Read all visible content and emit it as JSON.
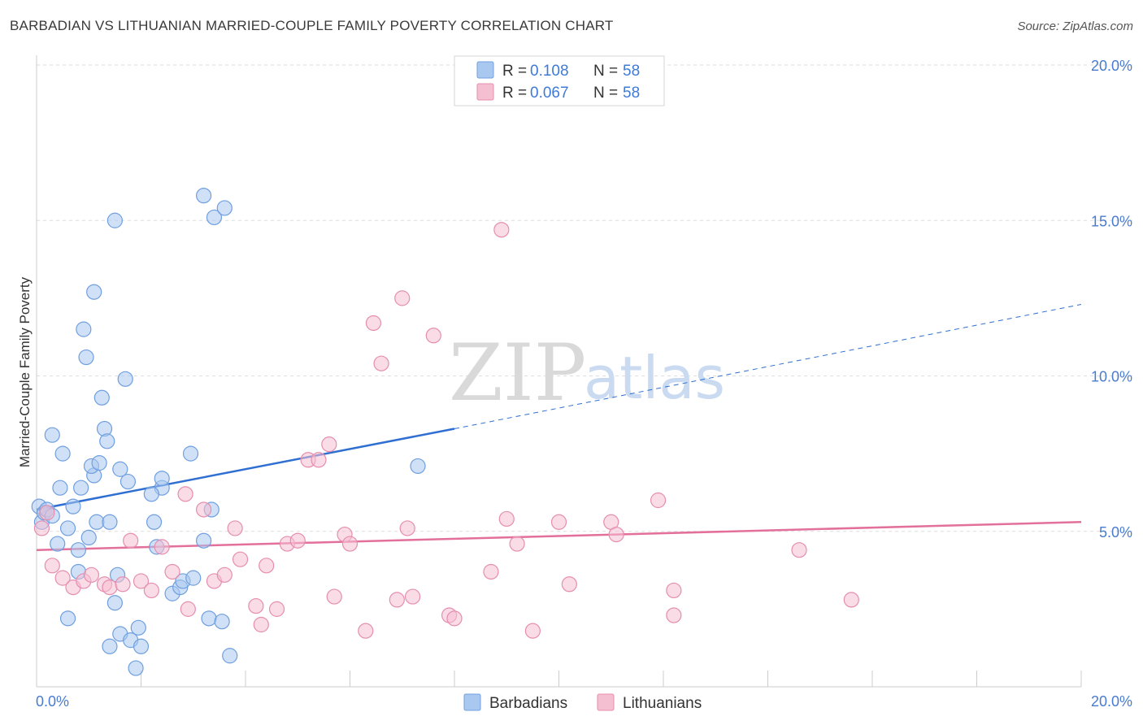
{
  "title": "BARBADIAN VS LITHUANIAN MARRIED-COUPLE FAMILY POVERTY CORRELATION CHART",
  "source": "Source: ZipAtlas.com",
  "watermark": {
    "part1": "ZIP",
    "part2": "atlas"
  },
  "colors": {
    "blue_fill": "#a9c8f0",
    "blue_stroke": "#6f9fe0",
    "blue_line": "#2f6fd1",
    "pink_fill": "#f5bfd2",
    "pink_stroke": "#e58eaf",
    "pink_line": "#e2709a",
    "tick_text": "#4a7bd0",
    "grid": "#dddddd"
  },
  "legend": {
    "rows": [
      {
        "r_label": "R =",
        "r_value": "0.108",
        "n_label": "N =",
        "n_value": "58"
      },
      {
        "r_label": "R =",
        "r_value": "0.067",
        "n_label": "N =",
        "n_value": "58"
      }
    ]
  },
  "bottom_legend": [
    "Barbadians",
    "Lithuanians"
  ],
  "chart_data": {
    "type": "scatter",
    "title": "BARBADIAN VS LITHUANIAN MARRIED-COUPLE FAMILY POVERTY CORRELATION CHART",
    "xlabel": "",
    "ylabel": "Married-Couple Family Poverty",
    "xlim": [
      0,
      20
    ],
    "ylim": [
      0,
      20
    ],
    "x_tick_labels": [
      "0.0%",
      "20.0%"
    ],
    "y_ticks": [
      5,
      10,
      15,
      20
    ],
    "y_tick_labels": [
      "5.0%",
      "10.0%",
      "15.0%",
      "20.0%"
    ],
    "series": [
      {
        "name": "Barbadians",
        "r": 0.108,
        "n": 58,
        "trend": {
          "x0": 0,
          "y0": 5.7,
          "x1": 8.0,
          "y1": 8.3,
          "dashed_to_x": 20,
          "dashed_to_y": 12.3
        },
        "points": [
          [
            0.05,
            5.8
          ],
          [
            0.1,
            5.3
          ],
          [
            0.15,
            5.6
          ],
          [
            0.2,
            5.7
          ],
          [
            0.3,
            5.5
          ],
          [
            0.4,
            4.6
          ],
          [
            0.45,
            6.4
          ],
          [
            0.3,
            8.1
          ],
          [
            0.5,
            7.5
          ],
          [
            0.6,
            5.1
          ],
          [
            0.7,
            5.8
          ],
          [
            0.8,
            4.4
          ],
          [
            0.8,
            3.7
          ],
          [
            0.85,
            6.4
          ],
          [
            0.9,
            11.5
          ],
          [
            0.95,
            10.6
          ],
          [
            1.0,
            4.8
          ],
          [
            1.1,
            6.8
          ],
          [
            1.05,
            7.1
          ],
          [
            1.15,
            5.3
          ],
          [
            1.2,
            7.2
          ],
          [
            1.25,
            9.3
          ],
          [
            1.3,
            8.3
          ],
          [
            1.35,
            7.9
          ],
          [
            1.4,
            5.3
          ],
          [
            1.5,
            2.7
          ],
          [
            1.4,
            1.3
          ],
          [
            1.6,
            1.7
          ],
          [
            1.8,
            1.5
          ],
          [
            1.9,
            0.6
          ],
          [
            2.0,
            1.3
          ],
          [
            1.95,
            1.9
          ],
          [
            1.75,
            6.6
          ],
          [
            1.6,
            7.0
          ],
          [
            1.5,
            15.0
          ],
          [
            1.1,
            12.7
          ],
          [
            1.55,
            3.6
          ],
          [
            1.7,
            9.9
          ],
          [
            2.25,
            5.3
          ],
          [
            2.3,
            4.5
          ],
          [
            2.4,
            6.4
          ],
          [
            2.4,
            6.7
          ],
          [
            2.2,
            6.2
          ],
          [
            2.6,
            3.0
          ],
          [
            2.75,
            3.2
          ],
          [
            2.8,
            3.4
          ],
          [
            2.95,
            7.5
          ],
          [
            3.0,
            3.5
          ],
          [
            3.2,
            4.7
          ],
          [
            3.3,
            2.2
          ],
          [
            3.35,
            5.7
          ],
          [
            3.2,
            15.8
          ],
          [
            3.4,
            15.1
          ],
          [
            3.6,
            15.4
          ],
          [
            3.7,
            1.0
          ],
          [
            3.55,
            2.1
          ],
          [
            7.3,
            7.1
          ],
          [
            0.6,
            2.2
          ]
        ]
      },
      {
        "name": "Lithuanians",
        "r": 0.067,
        "n": 58,
        "trend": {
          "x0": 0,
          "y0": 4.4,
          "x1": 20,
          "y1": 5.3
        },
        "points": [
          [
            0.1,
            5.1
          ],
          [
            0.2,
            5.6
          ],
          [
            0.3,
            3.9
          ],
          [
            0.5,
            3.5
          ],
          [
            0.7,
            3.2
          ],
          [
            0.9,
            3.4
          ],
          [
            1.05,
            3.6
          ],
          [
            1.3,
            3.3
          ],
          [
            1.4,
            3.2
          ],
          [
            1.65,
            3.3
          ],
          [
            1.8,
            4.7
          ],
          [
            2.0,
            3.4
          ],
          [
            2.2,
            3.1
          ],
          [
            2.4,
            4.5
          ],
          [
            2.6,
            3.7
          ],
          [
            2.85,
            6.2
          ],
          [
            2.9,
            2.5
          ],
          [
            3.2,
            5.7
          ],
          [
            3.4,
            3.4
          ],
          [
            3.6,
            3.6
          ],
          [
            3.8,
            5.1
          ],
          [
            3.9,
            4.1
          ],
          [
            4.2,
            2.6
          ],
          [
            4.3,
            2.0
          ],
          [
            4.4,
            3.9
          ],
          [
            4.6,
            2.5
          ],
          [
            4.8,
            4.6
          ],
          [
            5.0,
            4.7
          ],
          [
            5.2,
            7.3
          ],
          [
            5.4,
            7.3
          ],
          [
            5.6,
            7.8
          ],
          [
            5.7,
            2.9
          ],
          [
            5.9,
            4.9
          ],
          [
            6.0,
            4.6
          ],
          [
            6.3,
            1.8
          ],
          [
            6.45,
            11.7
          ],
          [
            6.6,
            10.4
          ],
          [
            6.9,
            2.8
          ],
          [
            7.0,
            12.5
          ],
          [
            7.1,
            5.1
          ],
          [
            7.2,
            2.9
          ],
          [
            7.6,
            11.3
          ],
          [
            7.9,
            2.3
          ],
          [
            8.0,
            2.2
          ],
          [
            8.7,
            3.7
          ],
          [
            8.9,
            14.7
          ],
          [
            9.0,
            5.4
          ],
          [
            9.2,
            4.6
          ],
          [
            9.5,
            1.8
          ],
          [
            10.0,
            5.3
          ],
          [
            10.2,
            3.3
          ],
          [
            11.0,
            5.3
          ],
          [
            11.1,
            4.9
          ],
          [
            11.9,
            6.0
          ],
          [
            12.2,
            3.1
          ],
          [
            12.2,
            2.3
          ],
          [
            14.6,
            4.4
          ],
          [
            15.6,
            2.8
          ]
        ]
      }
    ]
  }
}
